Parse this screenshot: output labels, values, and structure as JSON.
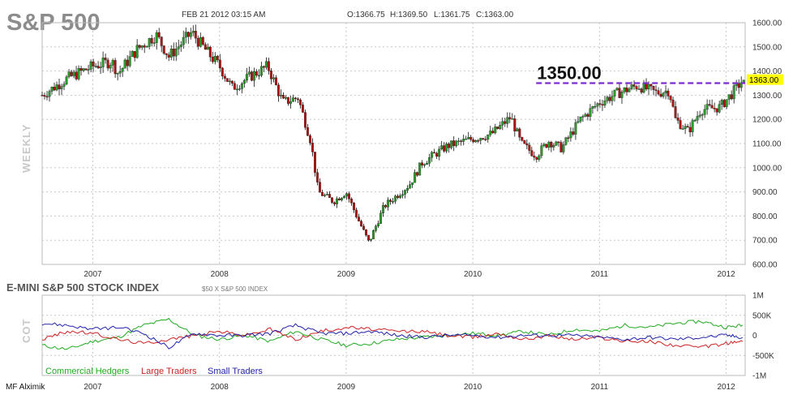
{
  "header": {
    "title": "S&P 500",
    "date": "FEB 21 2012 03:15 AM",
    "open": "O:1366.75",
    "high": "H:1369.50",
    "low": "L:1361.75",
    "close": "C:1363.00",
    "side_label": "WEEKLY"
  },
  "sub": {
    "title": "E-MINI S&P 500 STOCK INDEX",
    "note": "$50 X S&P 500 INDEX",
    "side_label": "COT"
  },
  "credit": "MF Alximik",
  "colors": {
    "up": "#2a9a2a",
    "down": "#b01010",
    "level": "#7b2bd0",
    "badge": "#ffff00",
    "commercial": "#22aa22",
    "large": "#cc2222",
    "small": "#2222aa",
    "grid": "#c8c8c8"
  },
  "chart_data": [
    {
      "type": "candlestick",
      "title": "S&P 500",
      "timeframe": "WEEKLY",
      "x_ticks": [
        "2007",
        "2008",
        "2009",
        "2010",
        "2011",
        "2012"
      ],
      "y_ticks": [
        "1600.00",
        "1500.00",
        "1400.00",
        "1300.00",
        "1200.00",
        "1100.00",
        "1000.00",
        "900.00",
        "800.00",
        "700.00",
        "600.00"
      ],
      "ylim": [
        600,
        1600
      ],
      "xlim": [
        2006.6,
        2012.15
      ],
      "grid": true,
      "price_path": [
        [
          2006.6,
          1300
        ],
        [
          2006.8,
          1370
        ],
        [
          2007.0,
          1420
        ],
        [
          2007.15,
          1440
        ],
        [
          2007.2,
          1390
        ],
        [
          2007.35,
          1490
        ],
        [
          2007.5,
          1550
        ],
        [
          2007.6,
          1460
        ],
        [
          2007.78,
          1560
        ],
        [
          2007.9,
          1480
        ],
        [
          2008.0,
          1420
        ],
        [
          2008.1,
          1330
        ],
        [
          2008.25,
          1380
        ],
        [
          2008.38,
          1420
        ],
        [
          2008.5,
          1270
        ],
        [
          2008.62,
          1290
        ],
        [
          2008.72,
          1110
        ],
        [
          2008.78,
          900
        ],
        [
          2008.9,
          860
        ],
        [
          2009.0,
          900
        ],
        [
          2009.1,
          780
        ],
        [
          2009.18,
          690
        ],
        [
          2009.3,
          840
        ],
        [
          2009.5,
          930
        ],
        [
          2009.6,
          1020
        ],
        [
          2009.8,
          1090
        ],
        [
          2010.0,
          1120
        ],
        [
          2010.15,
          1140
        ],
        [
          2010.3,
          1210
        ],
        [
          2010.38,
          1100
        ],
        [
          2010.5,
          1050
        ],
        [
          2010.6,
          1110
        ],
        [
          2010.7,
          1080
        ],
        [
          2010.85,
          1200
        ],
        [
          2011.0,
          1270
        ],
        [
          2011.15,
          1310
        ],
        [
          2011.3,
          1340
        ],
        [
          2011.45,
          1310
        ],
        [
          2011.55,
          1320
        ],
        [
          2011.6,
          1200
        ],
        [
          2011.7,
          1150
        ],
        [
          2011.8,
          1240
        ],
        [
          2011.95,
          1250
        ],
        [
          2012.05,
          1310
        ],
        [
          2012.13,
          1363
        ]
      ],
      "annotations": [
        {
          "type": "hline",
          "value": 1350,
          "label": "1350.00",
          "x_start": 2010.5
        },
        {
          "type": "last_price",
          "value": 1363,
          "label": "1363.00"
        }
      ]
    },
    {
      "type": "line",
      "title": "COT",
      "x_ticks": [
        "2007",
        "2008",
        "2009",
        "2010",
        "2011",
        "2012"
      ],
      "y_ticks": [
        "1M",
        "500K",
        "0",
        "-500K",
        "-1M"
      ],
      "ylim": [
        -1000000,
        1000000
      ],
      "xlim": [
        2006.6,
        2012.15
      ],
      "legend_position": "bottom-left",
      "series": [
        {
          "name": "Commercial Hedgers",
          "x": [
            2006.6,
            2006.8,
            2007.0,
            2007.2,
            2007.4,
            2007.6,
            2007.8,
            2008.0,
            2008.2,
            2008.4,
            2008.6,
            2008.8,
            2009.0,
            2009.2,
            2009.4,
            2009.6,
            2009.8,
            2010.0,
            2010.2,
            2010.4,
            2010.6,
            2010.8,
            2011.0,
            2011.2,
            2011.4,
            2011.6,
            2011.8,
            2012.0,
            2012.13
          ],
          "values": [
            -250000,
            -350000,
            -150000,
            -50000,
            250000,
            400000,
            0,
            -100000,
            0,
            -150000,
            100000,
            -100000,
            -250000,
            -200000,
            -100000,
            -50000,
            0,
            50000,
            0,
            100000,
            0,
            150000,
            100000,
            250000,
            200000,
            300000,
            350000,
            200000,
            250000
          ]
        },
        {
          "name": "Large Traders",
          "x": [
            2006.6,
            2006.8,
            2007.0,
            2007.2,
            2007.4,
            2007.6,
            2007.8,
            2008.0,
            2008.2,
            2008.4,
            2008.6,
            2008.8,
            2009.0,
            2009.2,
            2009.4,
            2009.6,
            2009.8,
            2010.0,
            2010.2,
            2010.4,
            2010.6,
            2010.8,
            2011.0,
            2011.2,
            2011.4,
            2011.6,
            2011.8,
            2012.0,
            2012.13
          ],
          "values": [
            -100000,
            100000,
            50000,
            -100000,
            -200000,
            -100000,
            0,
            100000,
            0,
            150000,
            -100000,
            100000,
            200000,
            150000,
            100000,
            100000,
            0,
            -50000,
            50000,
            -100000,
            0,
            -100000,
            -50000,
            -150000,
            -150000,
            -250000,
            -300000,
            -200000,
            -150000
          ]
        },
        {
          "name": "Small Traders",
          "x": [
            2006.6,
            2006.8,
            2007.0,
            2007.2,
            2007.4,
            2007.6,
            2007.8,
            2008.0,
            2008.2,
            2008.4,
            2008.6,
            2008.8,
            2009.0,
            2009.2,
            2009.4,
            2009.6,
            2009.8,
            2010.0,
            2010.2,
            2010.4,
            2010.6,
            2010.8,
            2011.0,
            2011.2,
            2011.4,
            2011.6,
            2011.8,
            2012.0,
            2012.13
          ],
          "values": [
            300000,
            250000,
            150000,
            200000,
            50000,
            -300000,
            50000,
            0,
            0,
            50000,
            250000,
            50000,
            50000,
            100000,
            0,
            -50000,
            0,
            0,
            -50000,
            0,
            0,
            0,
            -50000,
            -100000,
            -50000,
            -100000,
            -50000,
            0,
            -50000
          ]
        }
      ]
    }
  ]
}
